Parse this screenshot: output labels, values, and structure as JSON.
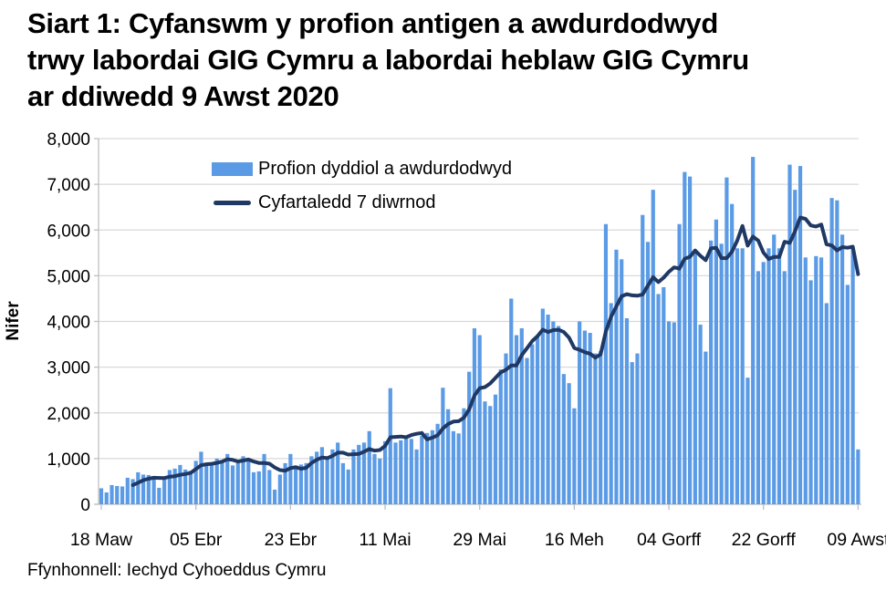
{
  "page": {
    "title_lines": [
      "Siart 1: Cyfanswm y profion antigen a awdurdodwyd",
      "trwy labordai GIG Cymru a labordai heblaw GIG Cymru",
      "ar ddiwedd 9 Awst 2020"
    ],
    "source": "Ffynhonnell: Iechyd Cyhoeddus Cymru"
  },
  "legend": {
    "bars_label": "Profion dyddiol a awdurdodwyd",
    "line_label": "Cyfartaledd 7 diwrnod"
  },
  "colors": {
    "bar": "#5B9BE5",
    "line": "#1F3864",
    "grid": "#D9D9D9",
    "axis": "#BFBFBF",
    "text": "#000000"
  },
  "chart_data": {
    "type": "bar",
    "title": "Siart 1: Cyfanswm y profion antigen a awdurdodwyd trwy labordai GIG Cymru a labordai heblaw GIG Cymru ar ddiwedd 9 Awst 2020",
    "xlabel": "",
    "ylabel": "Nifer",
    "ylim": [
      0,
      8000
    ],
    "ytick_step": 1000,
    "ytick_labels": [
      "0",
      "1,000",
      "2,000",
      "3,000",
      "4,000",
      "5,000",
      "6,000",
      "7,000",
      "8,000"
    ],
    "x_tick_labels": [
      "18 Maw",
      "05 Ebr",
      "23 Ebr",
      "11 Mai",
      "29 Mai",
      "16 Meh",
      "04 Gorff",
      "22 Gorff",
      "09 Awst"
    ],
    "x_tick_day_index": [
      1,
      19,
      37,
      55,
      73,
      91,
      109,
      127,
      145
    ],
    "x_range_days": 145,
    "grid": "horizontal",
    "legend_position": "top-left-inside",
    "series": [
      {
        "name": "Profion dyddiol a awdurdodwyd",
        "type": "bar",
        "values": [
          350,
          260,
          420,
          400,
          390,
          580,
          550,
          700,
          650,
          640,
          560,
          360,
          560,
          750,
          780,
          860,
          760,
          730,
          950,
          1150,
          900,
          850,
          1000,
          950,
          1100,
          850,
          900,
          1050,
          1000,
          700,
          720,
          1100,
          750,
          320,
          650,
          900,
          1100,
          850,
          870,
          900,
          1050,
          1150,
          1250,
          1000,
          1200,
          1350,
          900,
          760,
          1200,
          1300,
          1350,
          1600,
          1100,
          1000,
          1380,
          2540,
          1350,
          1400,
          1500,
          1430,
          1200,
          1500,
          1560,
          1620,
          1760,
          2550,
          2080,
          1600,
          1550,
          2100,
          2900,
          3850,
          3700,
          2250,
          2150,
          2400,
          2950,
          3300,
          4500,
          3700,
          3850,
          3200,
          3500,
          3700,
          4280,
          4150,
          4000,
          3900,
          2850,
          2650,
          2100,
          4000,
          3800,
          3750,
          3300,
          3350,
          6130,
          4400,
          5570,
          5360,
          4070,
          3110,
          3300,
          6330,
          5740,
          6880,
          4600,
          4750,
          4000,
          3980,
          6130,
          7270,
          7170,
          5570,
          3930,
          3340,
          5770,
          6230,
          5700,
          7150,
          6570,
          5600,
          5600,
          2770,
          7600,
          5100,
          5300,
          5600,
          5900,
          5600,
          5100,
          7430,
          6880,
          7400,
          5400,
          4900,
          5430,
          5400,
          4400,
          6700,
          6650,
          5900,
          4800,
          5600,
          1200
        ]
      },
      {
        "name": "Cyfartaledd 7 diwrnod",
        "type": "line",
        "average_window": 7
      }
    ]
  }
}
